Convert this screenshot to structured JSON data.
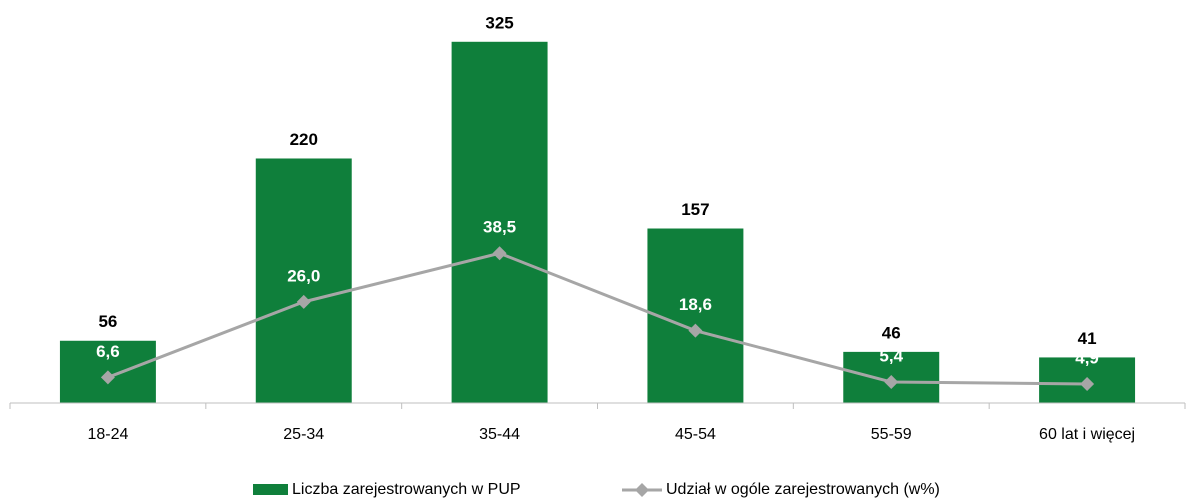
{
  "chart_data": {
    "type": "bar-line",
    "categories": [
      "18-24",
      "25-34",
      "35-44",
      "45-54",
      "55-59",
      "60 lat i więcej"
    ],
    "series": [
      {
        "name": "Liczba zarejestrowanych w PUP",
        "type": "bar",
        "color": "#0f7f3b",
        "values": [
          56,
          220,
          325,
          157,
          46,
          41
        ]
      },
      {
        "name": "Udział w ogóle zarejestrowanych (w%)",
        "type": "line",
        "axis": "y2",
        "color": "#a6a6a6",
        "values": [
          6.6,
          26.0,
          38.5,
          18.6,
          5.4,
          4.9
        ],
        "value_labels": [
          "6,6",
          "26,0",
          "38,5",
          "18,6",
          "5,4",
          "4,9"
        ]
      }
    ],
    "ylim": [
      0,
      350
    ],
    "y2lim": [
      0,
      100
    ],
    "legend": "bottom"
  }
}
